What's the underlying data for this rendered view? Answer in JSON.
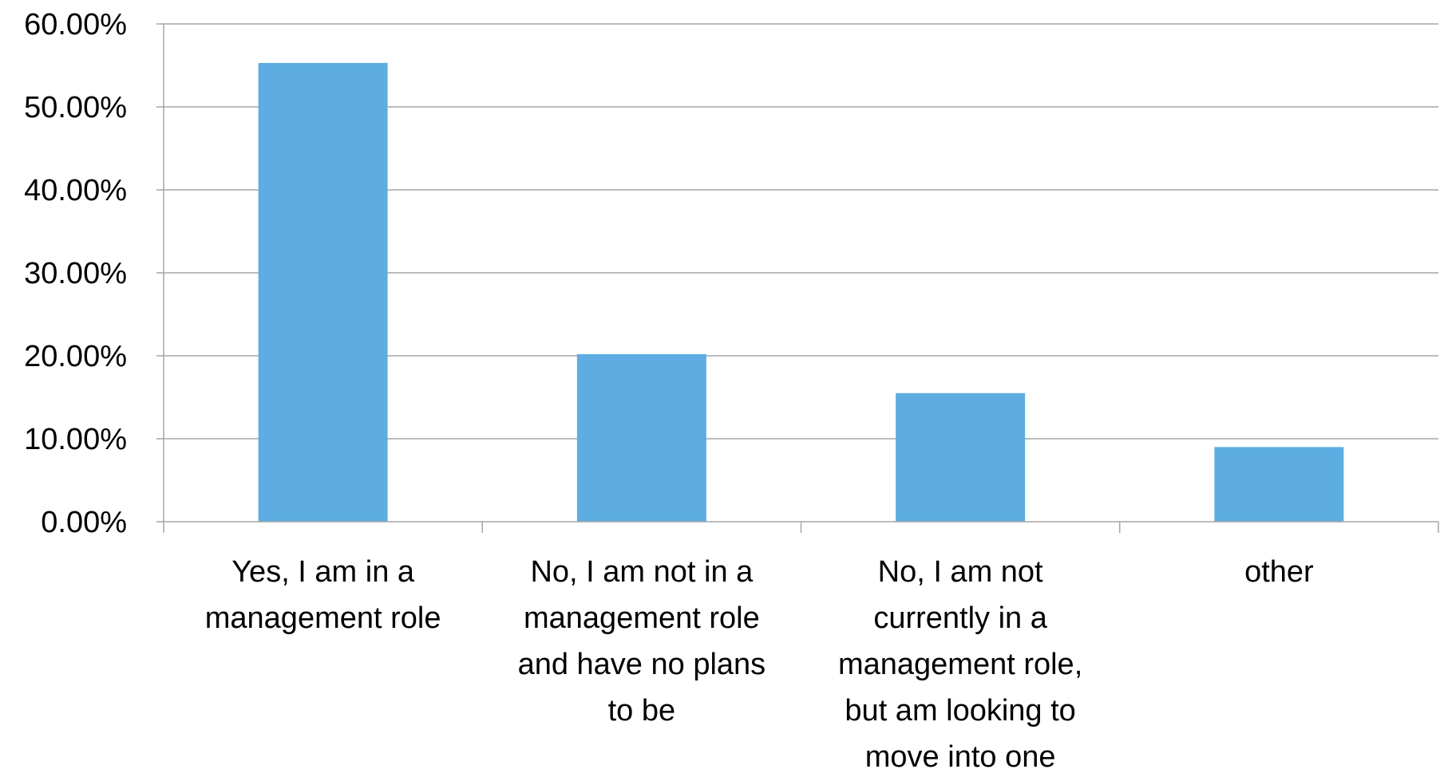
{
  "chart_data": {
    "type": "bar",
    "title": "",
    "xlabel": "",
    "ylabel": "",
    "categories": [
      [
        "Yes, I am in a",
        "management role"
      ],
      [
        "No, I am not in a",
        "management role",
        "and have no plans",
        "to be"
      ],
      [
        "No, I am not",
        "currently in a",
        "management role,",
        "but am looking to",
        "move into one"
      ],
      [
        "other"
      ]
    ],
    "values": [
      0.553,
      0.202,
      0.155,
      0.09
    ],
    "ylim": [
      0,
      0.6
    ],
    "yticks": [
      0,
      0.1,
      0.2,
      0.3,
      0.4,
      0.5,
      0.6
    ],
    "ytick_labels": [
      "0.00%",
      "10.00%",
      "20.00%",
      "30.00%",
      "40.00%",
      "50.00%",
      "60.00%"
    ],
    "grid": true,
    "colors": {
      "bar": "#5DADE2",
      "grid": "#A6A6A6",
      "axis": "#A6A6A6"
    }
  }
}
